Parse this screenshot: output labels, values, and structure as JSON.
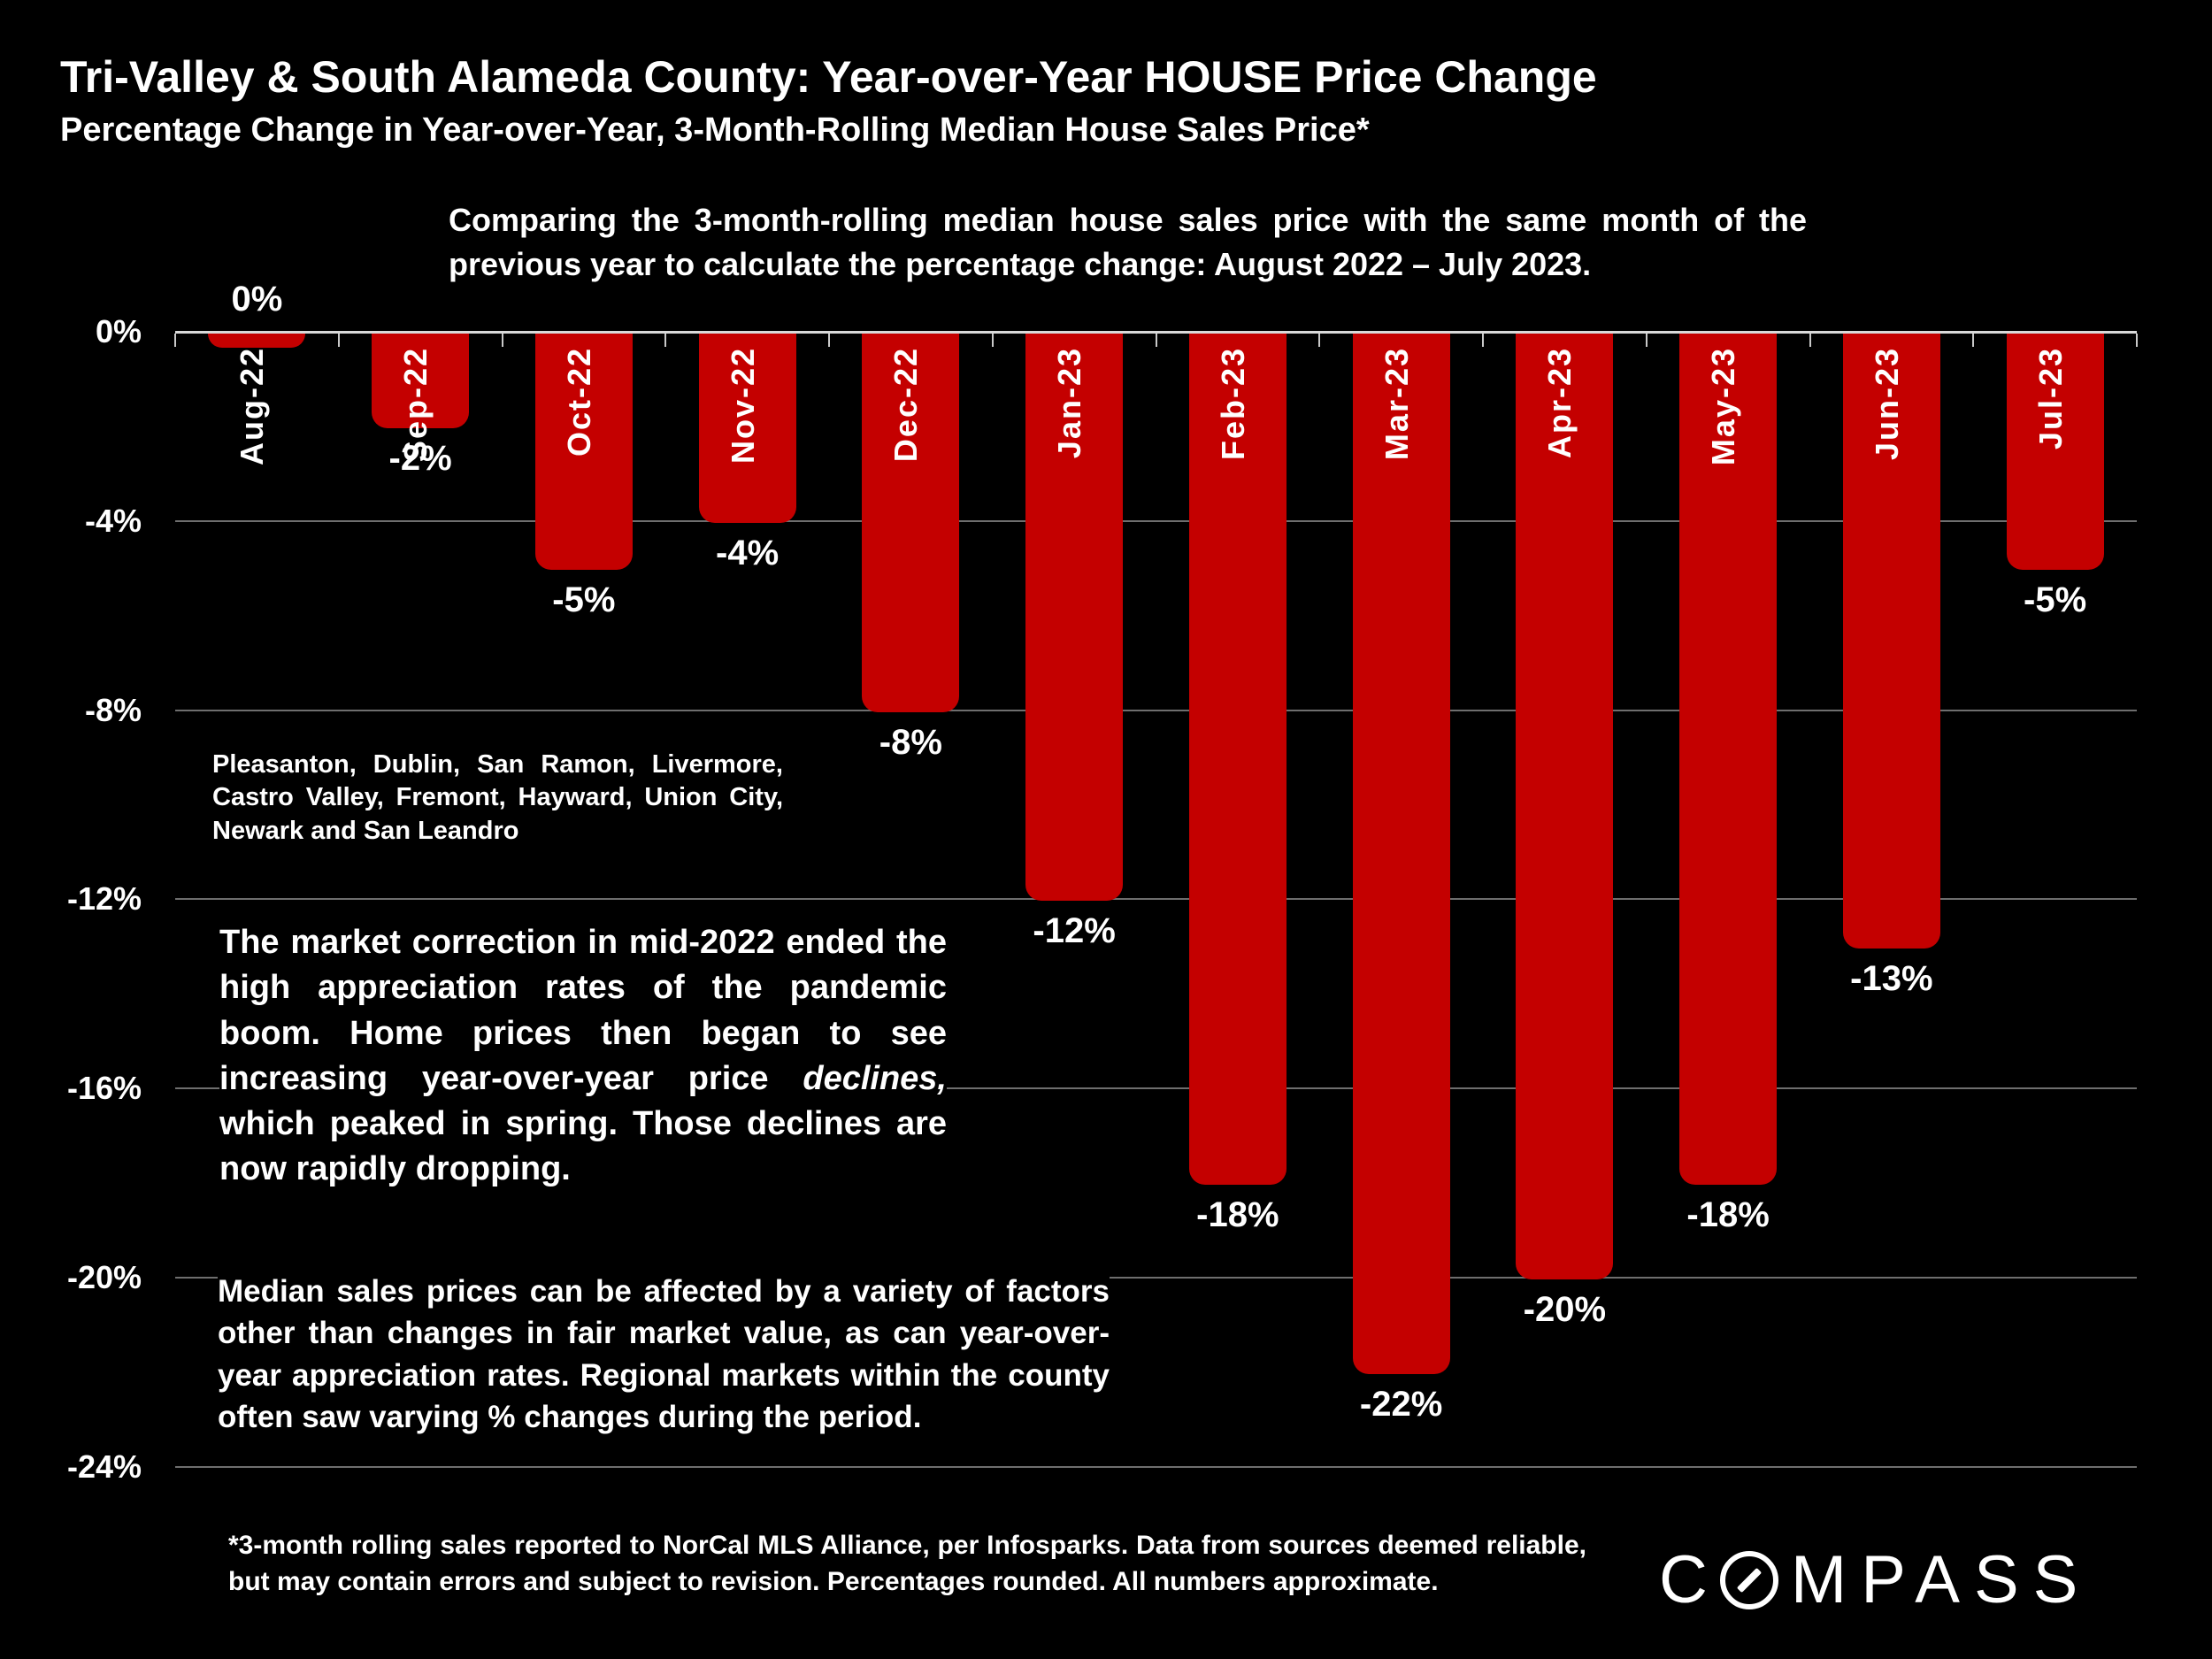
{
  "slide": {
    "title": "Tri-Valley & South Alameda County: Year-over-Year HOUSE Price Change",
    "subtitle": "Percentage Change in Year-over-Year, 3-Month-Rolling Median House Sales Price*",
    "intro": "Comparing the 3-month-rolling median house sales price with the same month of the previous year to calculate the percentage change: August 2022 – July 2023.",
    "region_note": "Pleasanton, Dublin, San Ramon, Livermore, Castro Valley, Fremont, Hayward, Union City, Newark and San Leandro",
    "paragraph1": {
      "pre": "The market correction in mid-2022 ended the high appreciation rates of the pandemic boom.  Home prices then began to see increasing year-over-year price ",
      "italic": "declines,",
      "post": " which peaked in spring. Those declines are now rapidly dropping."
    },
    "paragraph2": "Median sales prices can be affected by a variety of factors other than changes in fair market value, as can year-over-year appreciation rates. Regional markets within the county often saw varying % changes during the period.",
    "footnote": "*3-month rolling sales reported to NorCal MLS Alliance, per Infosparks. Data from sources deemed reliable, but may contain errors and subject to revision. Percentages rounded. All numbers approximate.",
    "logo": {
      "first": "C",
      "rest": "MPASS"
    }
  },
  "colors": {
    "background": "#000000",
    "bar": "#C40000",
    "text": "#FFFFFF",
    "gridline": "#6E6E6E",
    "axis": "#D9D9D9"
  },
  "chart_data": {
    "type": "bar",
    "title": "Year-over-Year percentage change in 3-month-rolling median house sales price, August 2022 – July 2023",
    "categories": [
      "Aug-22",
      "Sep-22",
      "Oct-22",
      "Nov-22",
      "Dec-22",
      "Jan-23",
      "Feb-23",
      "Mar-23",
      "Apr-23",
      "May-23",
      "Jun-23",
      "Jul-23"
    ],
    "values": [
      0,
      -2,
      -5,
      -4,
      -8,
      -12,
      -18,
      -22,
      -20,
      -18,
      -13,
      -5
    ],
    "bar_labels": [
      "0%",
      "-2%",
      "-5%",
      "-4%",
      "-8%",
      "-12%",
      "-18%",
      "-22%",
      "-20%",
      "-18%",
      "-13%",
      "-5%"
    ],
    "y_ticks": [
      "0%",
      "-4%",
      "-8%",
      "-12%",
      "-16%",
      "-20%",
      "-24%"
    ],
    "y_tick_values": [
      0,
      -4,
      -8,
      -12,
      -16,
      -20,
      -24
    ],
    "ylim": [
      -24,
      0
    ],
    "grid": true,
    "legend": "none",
    "xlabel": "",
    "ylabel": ""
  }
}
